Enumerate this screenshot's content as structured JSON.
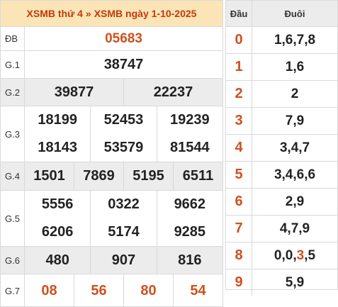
{
  "header": {
    "link1": "XSMB thứ 4",
    "separator": "»",
    "link2": "XSMB ngày 1-10-2025"
  },
  "prizes": {
    "db": {
      "label": "ĐB",
      "numbers": [
        "05683"
      ]
    },
    "g1": {
      "label": "G.1",
      "numbers": [
        "38747"
      ]
    },
    "g2": {
      "label": "G.2",
      "numbers": [
        "39877",
        "22237"
      ]
    },
    "g3": {
      "label": "G.3",
      "numbers": [
        "18199",
        "52453",
        "19239",
        "18143",
        "53579",
        "81544"
      ]
    },
    "g4": {
      "label": "G.4",
      "numbers": [
        "1501",
        "7869",
        "5195",
        "6511"
      ]
    },
    "g5": {
      "label": "G.5",
      "numbers": [
        "5556",
        "0322",
        "9662",
        "6206",
        "5174",
        "9285"
      ]
    },
    "g6": {
      "label": "G.6",
      "numbers": [
        "480",
        "907",
        "816"
      ]
    },
    "g7": {
      "label": "G.7",
      "numbers": [
        "08",
        "56",
        "80",
        "54"
      ]
    }
  },
  "loto": {
    "head_label": "Đầu",
    "tail_label": "Đuôi",
    "rows": [
      {
        "head": "0",
        "tail": "1,6,7,8"
      },
      {
        "head": "1",
        "tail": "1,6"
      },
      {
        "head": "2",
        "tail": "2"
      },
      {
        "head": "3",
        "tail": "7,9"
      },
      {
        "head": "4",
        "tail": "3,4,7"
      },
      {
        "head": "5",
        "tail": "3,4,6,6"
      },
      {
        "head": "6",
        "tail": "2,9"
      },
      {
        "head": "7",
        "tail": "4,7,9"
      },
      {
        "head": "8",
        "tail_pre": "0,0,",
        "tail_highlight": "3",
        "tail_post": ",5"
      },
      {
        "head": "9",
        "tail": "5,9"
      }
    ]
  },
  "colors": {
    "header_bg": "#fbe4b6",
    "accent": "#d0501c",
    "grey_row": "#ececec"
  }
}
